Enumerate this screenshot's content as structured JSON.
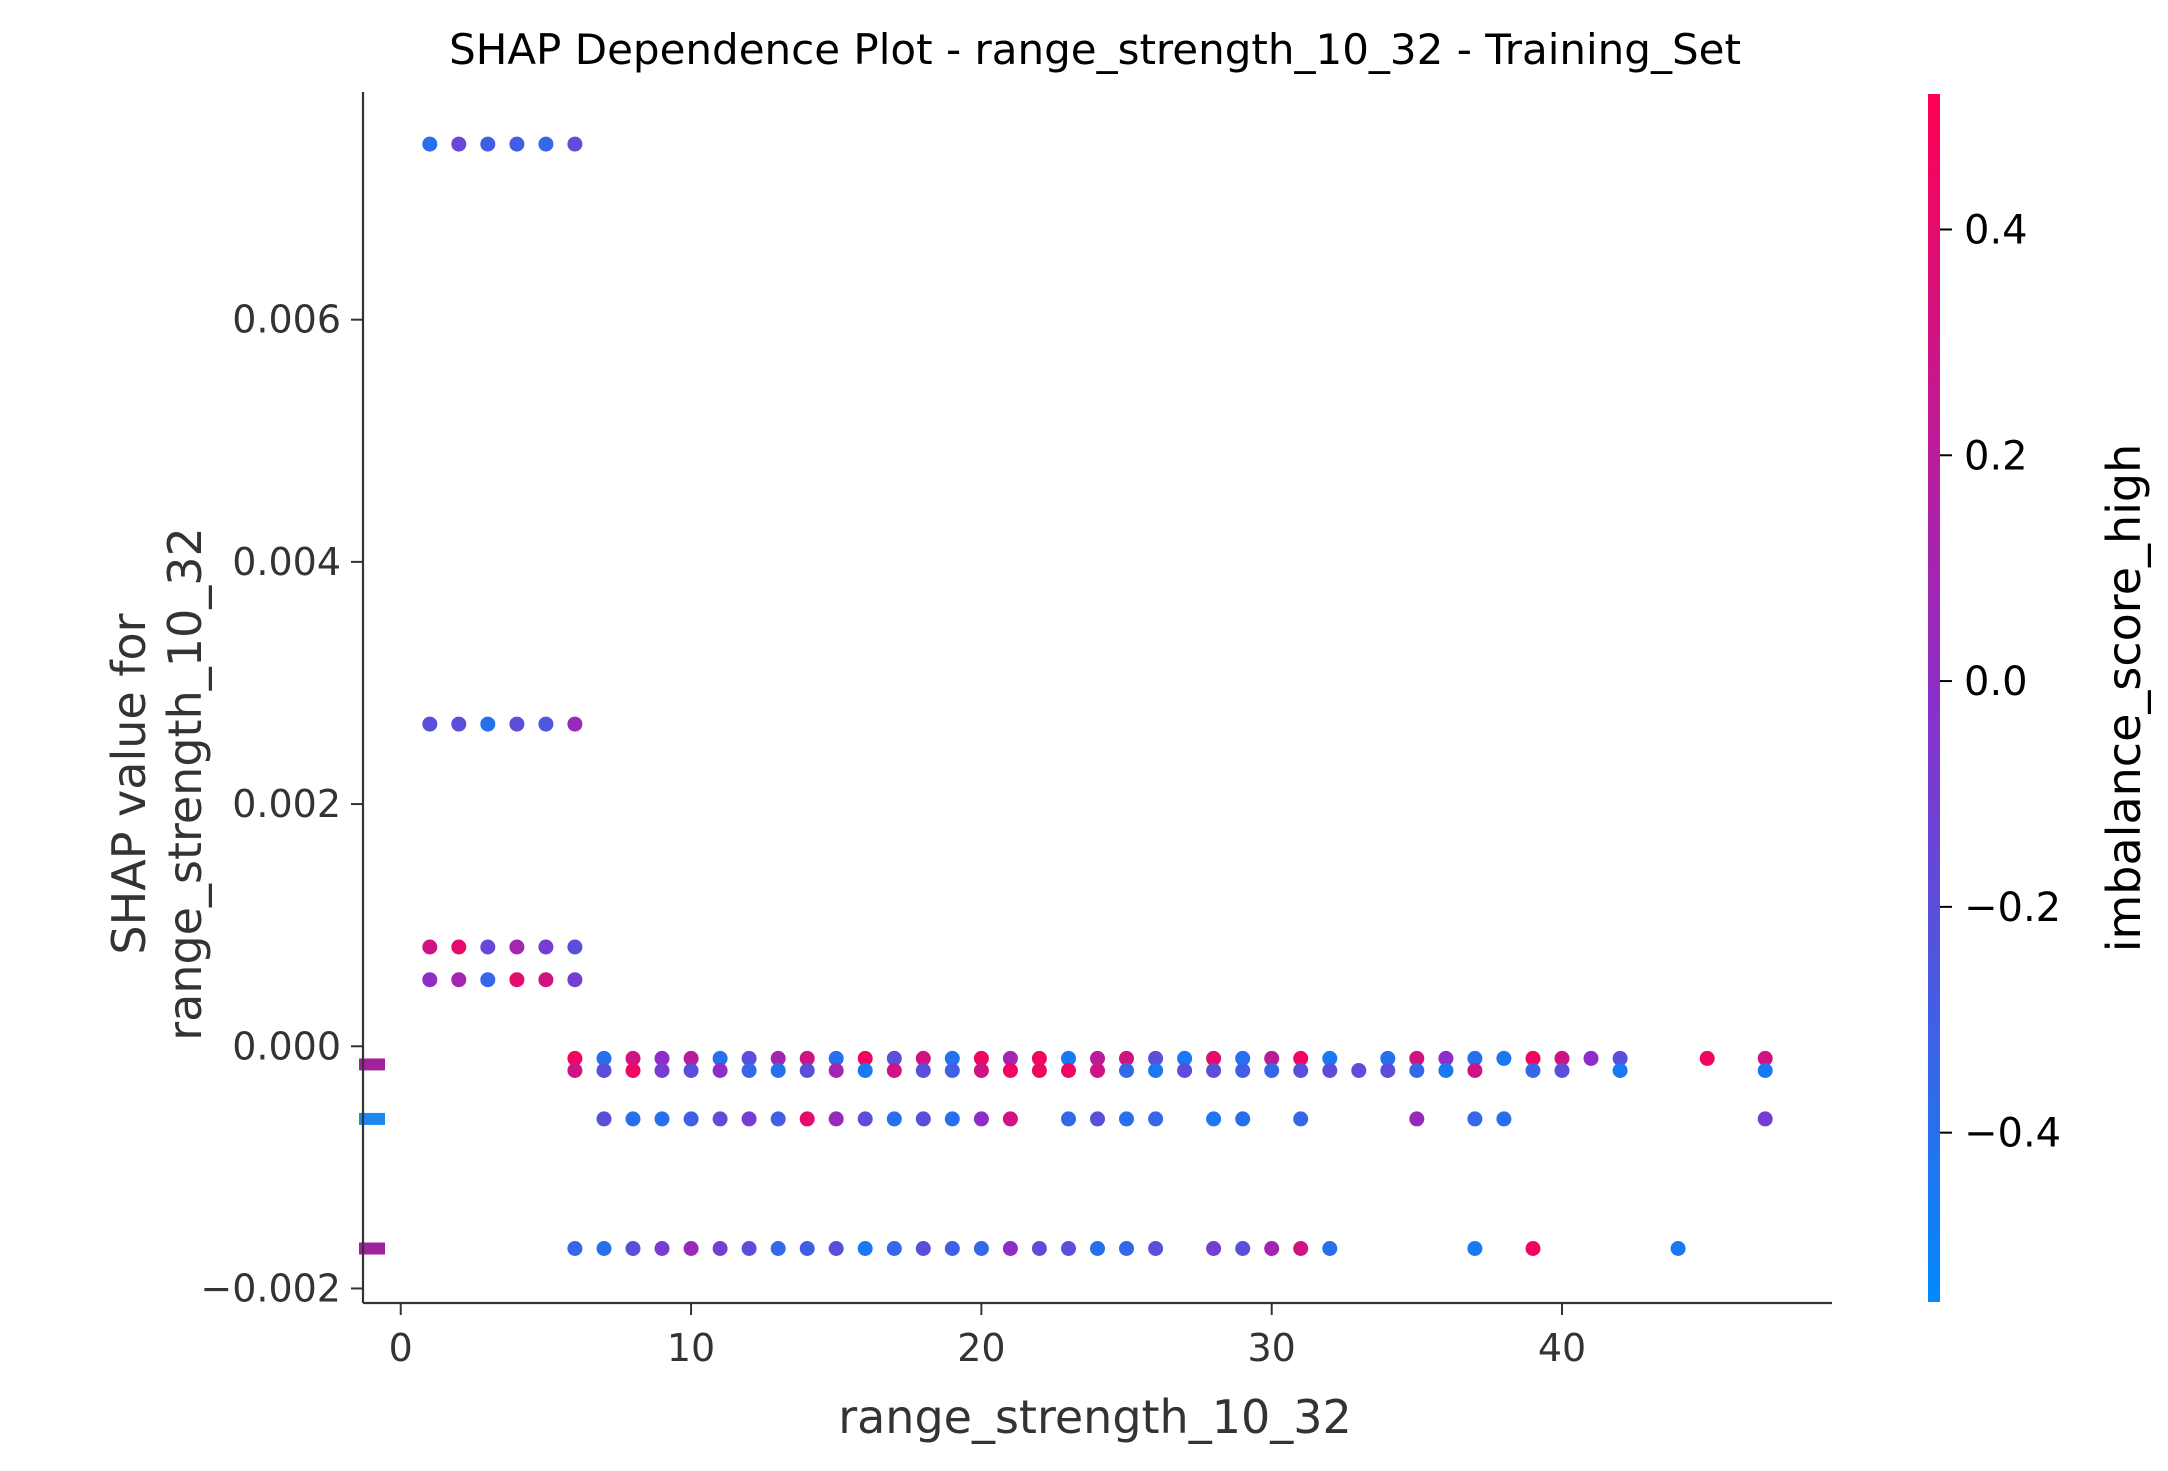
{
  "chart_data": {
    "type": "scatter",
    "title": "SHAP Dependence Plot - range_strength_10_32 - Training_Set",
    "xlabel": "range_strength_10_32",
    "ylabel_lines": [
      "SHAP value for",
      "range_strength_10_32"
    ],
    "xlim": [
      -1.3,
      49.3
    ],
    "ylim": [
      -0.00212,
      0.00788
    ],
    "xticks": [
      0,
      10,
      20,
      30,
      40
    ],
    "xtick_labels": [
      "0",
      "10",
      "20",
      "30",
      "40"
    ],
    "yticks": [
      -0.002,
      0.0,
      0.002,
      0.004,
      0.006
    ],
    "ytick_labels": [
      "−0.002",
      "0.000",
      "0.002",
      "0.004",
      "0.006"
    ],
    "colorbar": {
      "label": "imbalance_score_high",
      "range": [
        -0.55,
        0.52
      ],
      "ticks": [
        -0.4,
        -0.2,
        0.0,
        0.2,
        0.4
      ],
      "tick_labels": [
        "−0.4",
        "−0.2",
        "0.0",
        "0.2",
        "0.4"
      ],
      "color_low": "#008afb",
      "color_mid": "#8b2fc9",
      "color_high": "#ff0052"
    },
    "grid": false,
    "missing_markers": [
      {
        "y": -0.00015,
        "color": "#a0229c"
      },
      {
        "y": -0.0006,
        "color": "#1a8af0"
      },
      {
        "y": -0.00167,
        "color": "#a0229c"
      }
    ],
    "series": [
      {
        "values": [
          [
            1,
            0.00745,
            -0.4
          ],
          [
            2,
            0.00745,
            -0.15
          ],
          [
            3,
            0.00745,
            -0.3
          ],
          [
            4,
            0.00745,
            -0.3
          ],
          [
            5,
            0.00745,
            -0.35
          ],
          [
            6,
            0.00745,
            -0.2
          ],
          [
            1,
            0.00266,
            -0.2
          ],
          [
            2,
            0.00266,
            -0.2
          ],
          [
            3,
            0.00266,
            -0.4
          ],
          [
            4,
            0.00266,
            -0.2
          ],
          [
            5,
            0.00266,
            -0.25
          ],
          [
            6,
            0.00266,
            0.05
          ],
          [
            1,
            0.00082,
            0.3
          ],
          [
            2,
            0.00082,
            0.4
          ],
          [
            3,
            0.00082,
            -0.15
          ],
          [
            4,
            0.00082,
            0.1
          ],
          [
            5,
            0.00082,
            -0.1
          ],
          [
            6,
            0.00082,
            -0.2
          ],
          [
            1,
            0.00055,
            0.0
          ],
          [
            2,
            0.00055,
            0.1
          ],
          [
            3,
            0.00055,
            -0.35
          ],
          [
            4,
            0.00055,
            0.4
          ],
          [
            5,
            0.00055,
            0.3
          ],
          [
            6,
            0.00055,
            -0.1
          ],
          [
            6,
            -0.0001,
            0.45
          ],
          [
            7,
            -0.0001,
            -0.4
          ],
          [
            8,
            -0.0001,
            0.3
          ],
          [
            9,
            -0.0001,
            0.0
          ],
          [
            10,
            -0.0001,
            0.2
          ],
          [
            11,
            -0.0001,
            -0.4
          ],
          [
            12,
            -0.0001,
            -0.2
          ],
          [
            13,
            -0.0001,
            0.1
          ],
          [
            14,
            -0.0001,
            0.3
          ],
          [
            15,
            -0.0001,
            -0.4
          ],
          [
            16,
            -0.0001,
            0.45
          ],
          [
            17,
            -0.0001,
            -0.2
          ],
          [
            18,
            -0.0001,
            0.3
          ],
          [
            19,
            -0.0001,
            -0.4
          ],
          [
            20,
            -0.0001,
            0.45
          ],
          [
            21,
            -0.0001,
            0.1
          ],
          [
            22,
            -0.0001,
            0.45
          ],
          [
            23,
            -0.0001,
            -0.45
          ],
          [
            24,
            -0.0001,
            0.2
          ],
          [
            25,
            -0.0001,
            0.3
          ],
          [
            26,
            -0.0001,
            -0.2
          ],
          [
            27,
            -0.0001,
            -0.45
          ],
          [
            28,
            -0.0001,
            0.4
          ],
          [
            29,
            -0.0001,
            -0.4
          ],
          [
            30,
            -0.0001,
            0.2
          ],
          [
            31,
            -0.0001,
            0.45
          ],
          [
            32,
            -0.0001,
            -0.45
          ],
          [
            34,
            -0.0001,
            -0.4
          ],
          [
            35,
            -0.0001,
            0.3
          ],
          [
            36,
            -0.0001,
            0.0
          ],
          [
            37,
            -0.0001,
            -0.4
          ],
          [
            38,
            -0.0001,
            -0.45
          ],
          [
            39,
            -0.0001,
            0.45
          ],
          [
            40,
            -0.0001,
            0.3
          ],
          [
            41,
            -0.0001,
            0.0
          ],
          [
            42,
            -0.0001,
            -0.2
          ],
          [
            45,
            -0.0001,
            0.45
          ],
          [
            47,
            -0.0001,
            0.3
          ],
          [
            6,
            -0.0002,
            0.3
          ],
          [
            7,
            -0.0002,
            -0.2
          ],
          [
            8,
            -0.0002,
            0.45
          ],
          [
            9,
            -0.0002,
            -0.1
          ],
          [
            10,
            -0.0002,
            -0.2
          ],
          [
            11,
            -0.0002,
            0.0
          ],
          [
            12,
            -0.0002,
            -0.35
          ],
          [
            13,
            -0.0002,
            -0.4
          ],
          [
            14,
            -0.0002,
            -0.2
          ],
          [
            15,
            -0.0002,
            0.1
          ],
          [
            16,
            -0.0002,
            -0.45
          ],
          [
            17,
            -0.0002,
            0.3
          ],
          [
            18,
            -0.0002,
            -0.2
          ],
          [
            19,
            -0.0002,
            -0.3
          ],
          [
            20,
            -0.0002,
            0.3
          ],
          [
            21,
            -0.0002,
            0.45
          ],
          [
            22,
            -0.0002,
            0.45
          ],
          [
            23,
            -0.0002,
            0.45
          ],
          [
            24,
            -0.0002,
            0.3
          ],
          [
            25,
            -0.0002,
            -0.35
          ],
          [
            26,
            -0.0002,
            -0.45
          ],
          [
            27,
            -0.0002,
            -0.2
          ],
          [
            28,
            -0.0002,
            -0.2
          ],
          [
            29,
            -0.0002,
            -0.3
          ],
          [
            30,
            -0.0002,
            -0.35
          ],
          [
            31,
            -0.0002,
            -0.2
          ],
          [
            32,
            -0.0002,
            -0.2
          ],
          [
            33,
            -0.0002,
            -0.2
          ],
          [
            34,
            -0.0002,
            -0.2
          ],
          [
            35,
            -0.0002,
            -0.35
          ],
          [
            36,
            -0.0002,
            -0.45
          ],
          [
            37,
            -0.0002,
            0.3
          ],
          [
            39,
            -0.0002,
            -0.35
          ],
          [
            40,
            -0.0002,
            -0.2
          ],
          [
            42,
            -0.0002,
            -0.45
          ],
          [
            47,
            -0.0002,
            -0.45
          ],
          [
            7,
            -0.0006,
            -0.2
          ],
          [
            8,
            -0.0006,
            -0.4
          ],
          [
            9,
            -0.0006,
            -0.4
          ],
          [
            10,
            -0.0006,
            -0.3
          ],
          [
            11,
            -0.0006,
            -0.2
          ],
          [
            12,
            -0.0006,
            -0.1
          ],
          [
            13,
            -0.0006,
            -0.3
          ],
          [
            14,
            -0.0006,
            0.4
          ],
          [
            15,
            -0.0006,
            0.05
          ],
          [
            16,
            -0.0006,
            -0.2
          ],
          [
            17,
            -0.0006,
            -0.4
          ],
          [
            18,
            -0.0006,
            -0.2
          ],
          [
            19,
            -0.0006,
            -0.4
          ],
          [
            20,
            -0.0006,
            0.0
          ],
          [
            21,
            -0.0006,
            0.3
          ],
          [
            23,
            -0.0006,
            -0.35
          ],
          [
            24,
            -0.0006,
            -0.2
          ],
          [
            25,
            -0.0006,
            -0.4
          ],
          [
            26,
            -0.0006,
            -0.35
          ],
          [
            28,
            -0.0006,
            -0.45
          ],
          [
            29,
            -0.0006,
            -0.4
          ],
          [
            31,
            -0.0006,
            -0.35
          ],
          [
            35,
            -0.0006,
            0.05
          ],
          [
            37,
            -0.0006,
            -0.35
          ],
          [
            38,
            -0.0006,
            -0.4
          ],
          [
            47,
            -0.0006,
            -0.1
          ],
          [
            6,
            -0.00167,
            -0.35
          ],
          [
            7,
            -0.00167,
            -0.4
          ],
          [
            8,
            -0.00167,
            -0.2
          ],
          [
            9,
            -0.00167,
            -0.1
          ],
          [
            10,
            -0.00167,
            0.05
          ],
          [
            11,
            -0.00167,
            -0.1
          ],
          [
            12,
            -0.00167,
            -0.2
          ],
          [
            13,
            -0.00167,
            -0.35
          ],
          [
            14,
            -0.00167,
            -0.3
          ],
          [
            15,
            -0.00167,
            -0.2
          ],
          [
            16,
            -0.00167,
            -0.45
          ],
          [
            17,
            -0.00167,
            -0.35
          ],
          [
            18,
            -0.00167,
            -0.2
          ],
          [
            19,
            -0.00167,
            -0.3
          ],
          [
            20,
            -0.00167,
            -0.35
          ],
          [
            21,
            -0.00167,
            0.0
          ],
          [
            22,
            -0.00167,
            -0.2
          ],
          [
            23,
            -0.00167,
            -0.2
          ],
          [
            24,
            -0.00167,
            -0.4
          ],
          [
            25,
            -0.00167,
            -0.35
          ],
          [
            26,
            -0.00167,
            -0.2
          ],
          [
            28,
            -0.00167,
            -0.1
          ],
          [
            29,
            -0.00167,
            -0.2
          ],
          [
            30,
            -0.00167,
            0.1
          ],
          [
            31,
            -0.00167,
            0.3
          ],
          [
            32,
            -0.00167,
            -0.4
          ],
          [
            37,
            -0.00167,
            -0.45
          ],
          [
            39,
            -0.00167,
            0.45
          ],
          [
            44,
            -0.00167,
            -0.45
          ]
        ]
      }
    ]
  }
}
